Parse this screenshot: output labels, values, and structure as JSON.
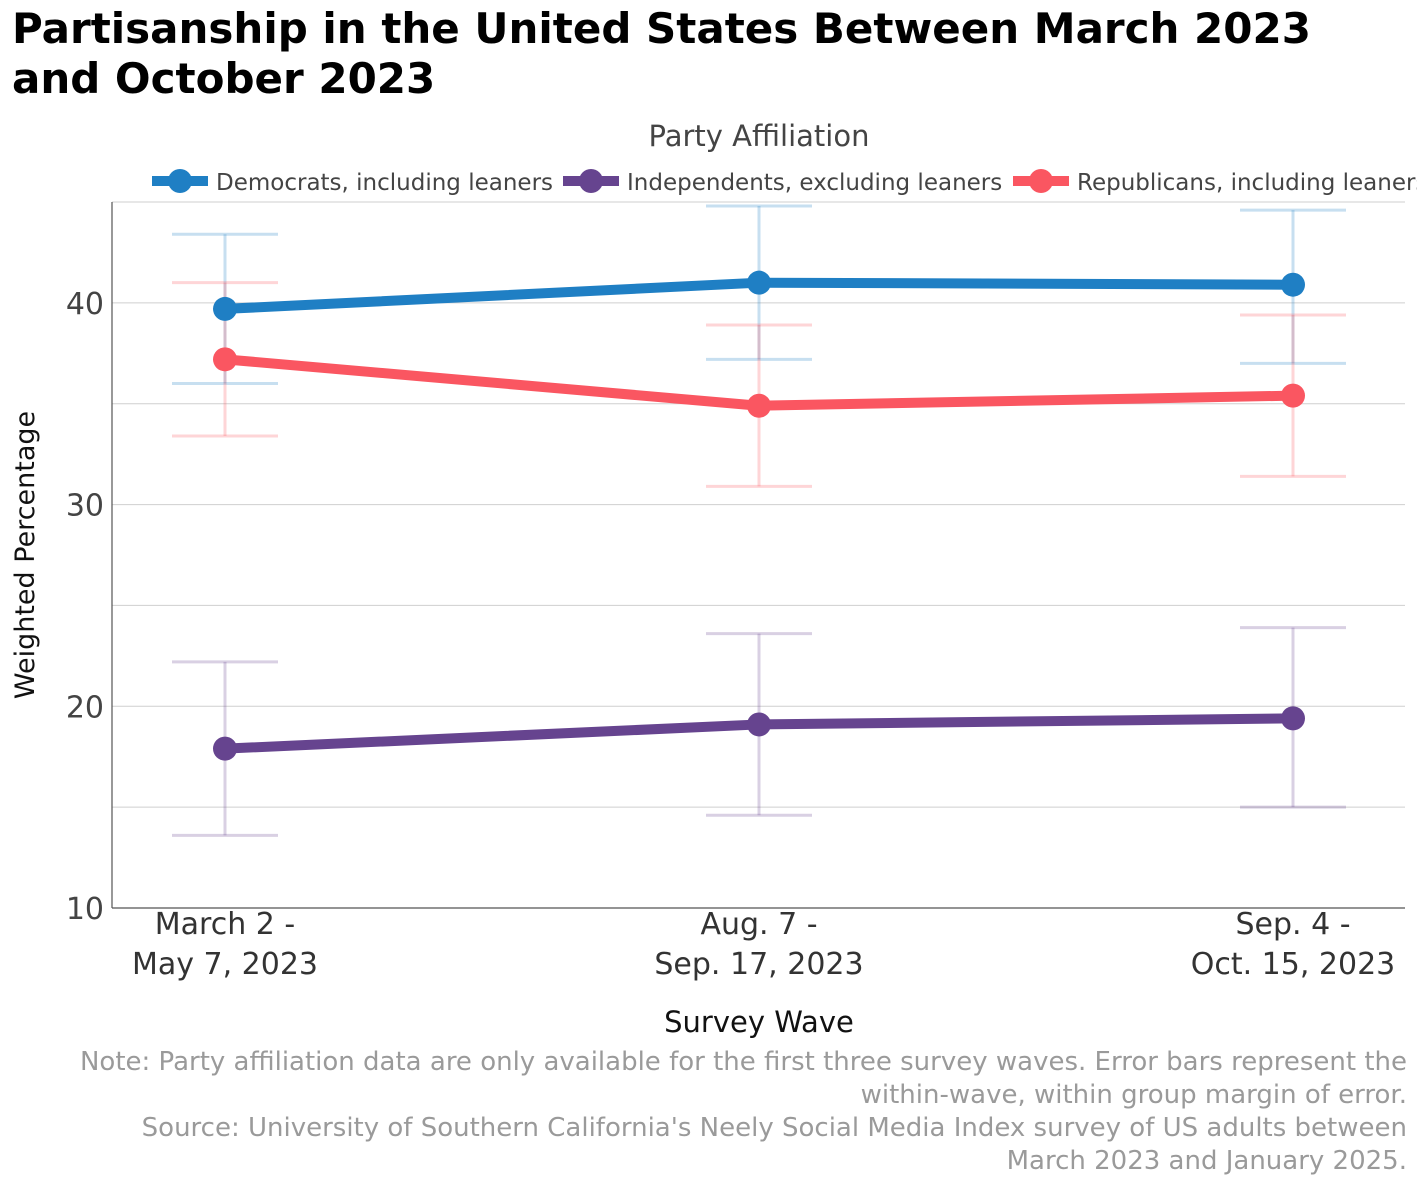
{
  "chart_data": {
    "type": "line",
    "title": "Partisanship in the United States Between March 2023 and October 2023",
    "legend_title": "Party Affiliation",
    "legend_position": "top",
    "xlabel": "Survey Wave",
    "ylabel": "Weighted Percentage",
    "categories": [
      [
        "March 2 -",
        "May 7, 2023"
      ],
      [
        "Aug. 7 -",
        "Sep. 17, 2023"
      ],
      [
        "Sep. 4 -",
        "Oct. 15, 2023"
      ]
    ],
    "ylim": [
      10,
      45
    ],
    "yticks": [
      10,
      20,
      30,
      40
    ],
    "grid": true,
    "error_bars": true,
    "series": [
      {
        "name": "Democrats, including leaners",
        "color": "#1f7fc4",
        "values": [
          39.7,
          41.0,
          40.9
        ],
        "err_low": [
          36.0,
          37.2,
          37.0
        ],
        "err_high": [
          43.4,
          44.8,
          44.6
        ]
      },
      {
        "name": "Independents, excluding leaners",
        "color": "#66448f",
        "values": [
          17.9,
          19.1,
          19.4
        ],
        "err_low": [
          13.6,
          14.6,
          15.0
        ],
        "err_high": [
          22.2,
          23.6,
          23.9
        ]
      },
      {
        "name": "Republicans, including leaners",
        "color": "#fa5661",
        "values": [
          37.2,
          34.9,
          35.4
        ],
        "err_low": [
          33.4,
          30.9,
          31.4
        ],
        "err_high": [
          41.0,
          38.9,
          39.4
        ]
      }
    ]
  },
  "notes": [
    "Note: Party affiliation data are only available for the first three survey waves. Error bars represent the",
    "within-wave, within group margin of error.",
    "Source: University of Southern California's Neely Social Media Index survey of US adults between",
    "March 2023 and January 2025."
  ]
}
